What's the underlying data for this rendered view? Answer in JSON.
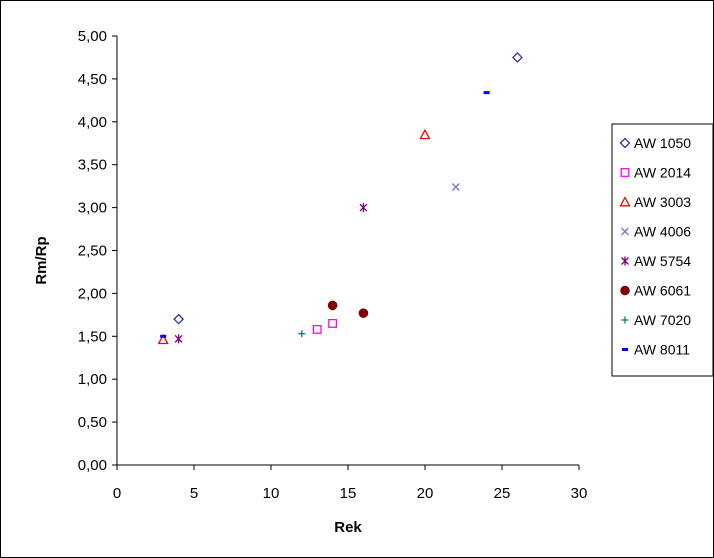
{
  "chart_data": {
    "type": "scatter",
    "title": "",
    "xlabel": "Rek",
    "ylabel": "Rm/Rp",
    "xlim": [
      0,
      30
    ],
    "ylim": [
      0,
      5
    ],
    "x_ticks": [
      0,
      5,
      10,
      15,
      20,
      25,
      30
    ],
    "x_tick_labels": [
      "0",
      "5",
      "10",
      "15",
      "20",
      "25",
      "30"
    ],
    "y_ticks": [
      0,
      0.5,
      1,
      1.5,
      2,
      2.5,
      3,
      3.5,
      4,
      4.5,
      5
    ],
    "y_tick_labels": [
      "0,00",
      "0,50",
      "1,00",
      "1,50",
      "2,00",
      "2,50",
      "3,00",
      "3,50",
      "4,00",
      "4,50",
      "5,00"
    ],
    "grid": false,
    "legend_position": "right",
    "series": [
      {
        "name": "AW 1050",
        "marker": "diamond-open",
        "color": "#3333aa",
        "points": [
          {
            "x": 4,
            "y": 1.7
          },
          {
            "x": 26,
            "y": 4.75
          }
        ]
      },
      {
        "name": "AW 2014",
        "marker": "square-open",
        "color": "#ff00ff",
        "points": [
          {
            "x": 13,
            "y": 1.58
          },
          {
            "x": 14,
            "y": 1.65
          }
        ]
      },
      {
        "name": "AW 3003",
        "marker": "triangle-open",
        "color": "#ff0000",
        "points": [
          {
            "x": 3,
            "y": 1.46
          },
          {
            "x": 20,
            "y": 3.85
          }
        ]
      },
      {
        "name": "AW 4006",
        "marker": "x",
        "color": "#7777cc",
        "points": [
          {
            "x": 22,
            "y": 3.24
          }
        ]
      },
      {
        "name": "AW 5754",
        "marker": "star",
        "color": "#800080",
        "points": [
          {
            "x": 4,
            "y": 1.47
          },
          {
            "x": 16,
            "y": 3.0
          }
        ]
      },
      {
        "name": "AW 6061",
        "marker": "circle-filled",
        "color": "#800000",
        "points": [
          {
            "x": 14,
            "y": 1.86
          },
          {
            "x": 16,
            "y": 1.77
          }
        ]
      },
      {
        "name": "AW 7020",
        "marker": "plus",
        "color": "#008080",
        "points": [
          {
            "x": 12,
            "y": 1.53
          }
        ]
      },
      {
        "name": "AW 8011",
        "marker": "dash",
        "color": "#0000ff",
        "points": [
          {
            "x": 3,
            "y": 1.5
          },
          {
            "x": 24,
            "y": 4.34
          }
        ]
      }
    ]
  }
}
